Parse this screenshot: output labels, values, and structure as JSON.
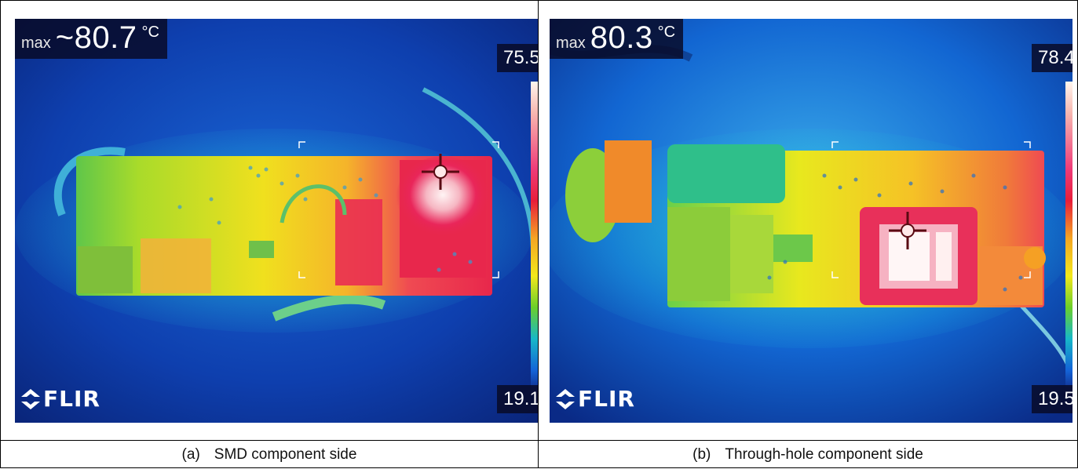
{
  "panels": [
    {
      "tag": "(a)",
      "caption": "SMD component side",
      "max_label": "max",
      "max_value": "~80.7",
      "unit": "°C",
      "scale_top": "75.5",
      "scale_bottom": "19.1",
      "brand": "FLIR"
    },
    {
      "tag": "(b)",
      "caption": "Through-hole component side",
      "max_label": "max",
      "max_value": "80.3",
      "unit": "°C",
      "scale_top": "78.4",
      "scale_bottom": "19.5",
      "brand": "FLIR"
    }
  ],
  "colors": {
    "background_cold": "#0a2f8f",
    "board_warm": "#f3d91e",
    "hotspot": "#e8164a",
    "peak": "#fff0f0"
  }
}
